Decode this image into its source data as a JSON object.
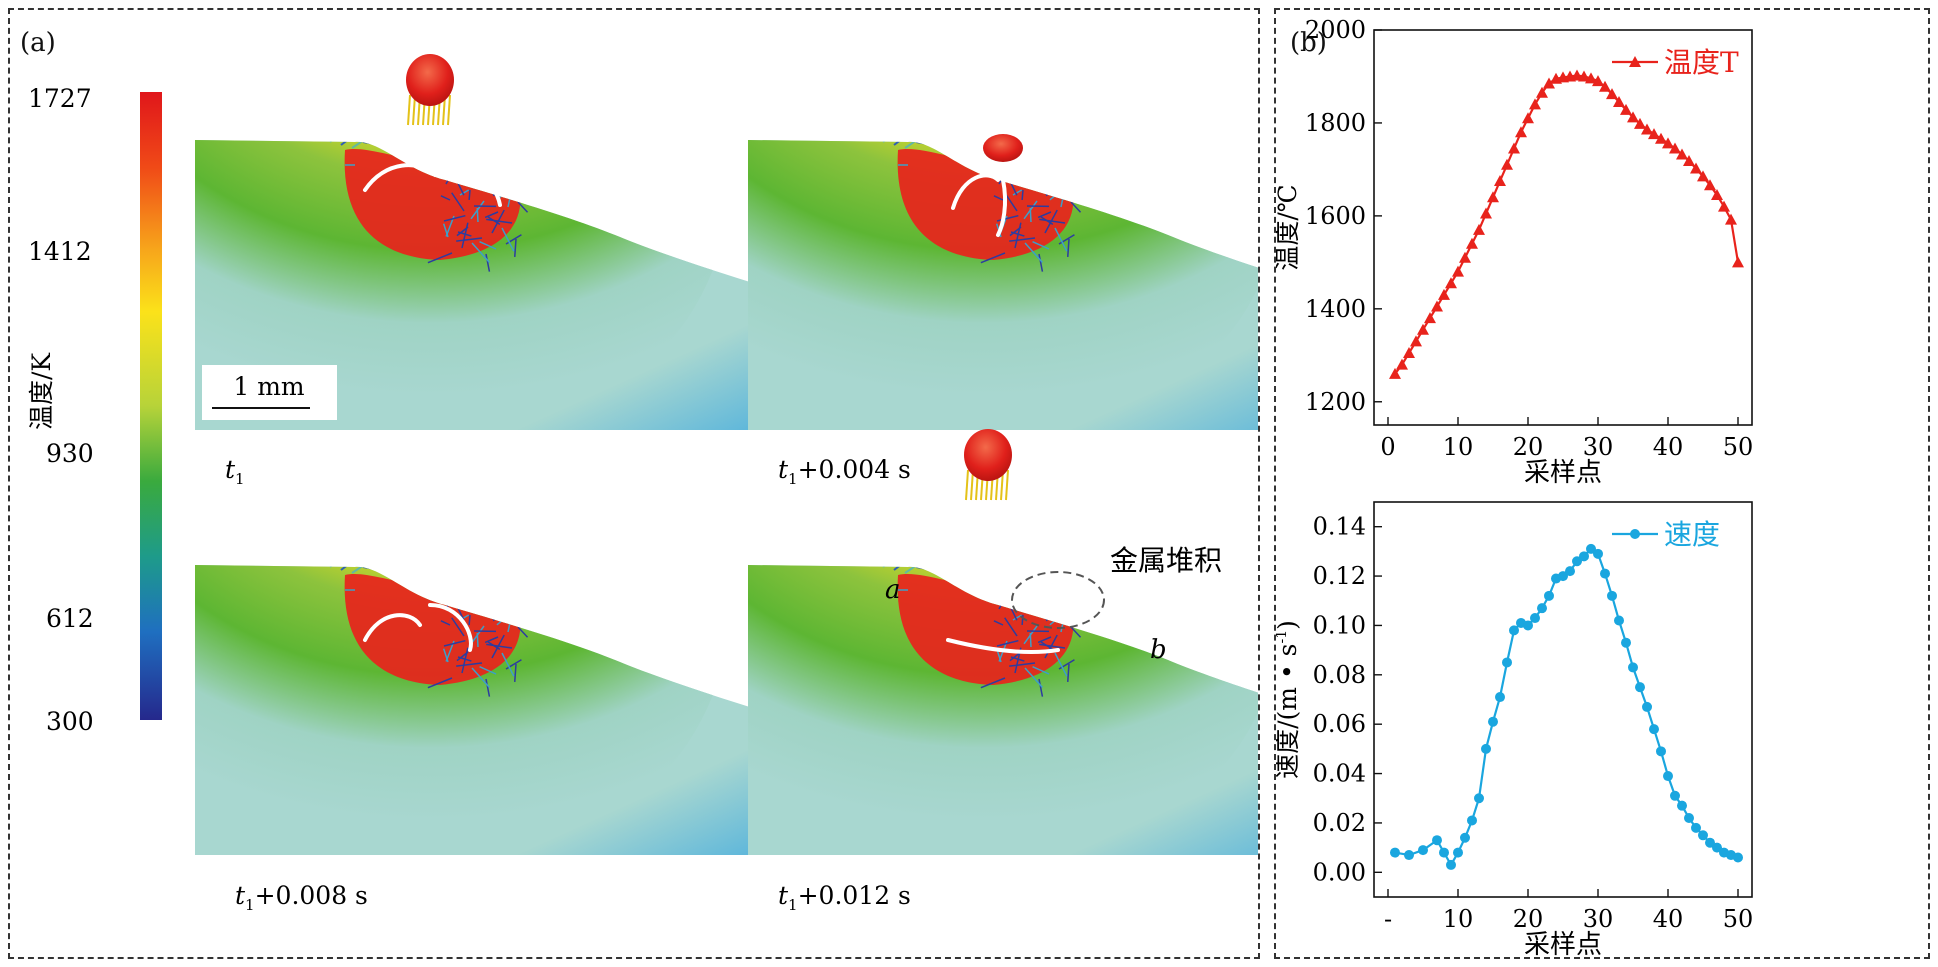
{
  "panel_a": {
    "label": "(a)",
    "colorbar": {
      "axis_label": "温度/K",
      "ticks": [
        "1727",
        "1412",
        "930",
        "612",
        "300"
      ]
    },
    "scale_bar": "1 mm",
    "snapshots": [
      {
        "base": "t",
        "sub": "1",
        "suffix": ""
      },
      {
        "base": "t",
        "sub": "1",
        "suffix": "+0.004 s"
      },
      {
        "base": "t",
        "sub": "1",
        "suffix": "+0.008 s"
      },
      {
        "base": "t",
        "sub": "1",
        "suffix": "+0.012 s"
      }
    ],
    "annotations": {
      "point_a": "a",
      "point_b": "b",
      "deposit": "金属堆积"
    },
    "colors": {
      "hot": "#e8231c",
      "warm": "#f5d800",
      "mid": "#5db633",
      "cool": "#a8d7d0",
      "cold": "#3aa7e0"
    }
  },
  "panel_b": {
    "label": "(b)"
  },
  "chart_data": [
    {
      "type": "line",
      "name": "温度T",
      "xlabel": "采样点",
      "ylabel": "温度/℃",
      "xlim": [
        -2,
        52
      ],
      "ylim": [
        1150,
        2000
      ],
      "xticks": [
        0,
        10,
        20,
        30,
        40,
        50
      ],
      "yticks": [
        1200,
        1400,
        1600,
        1800,
        2000
      ],
      "legend": "top-right",
      "color": "#e8231c",
      "marker": "triangle",
      "x": [
        1,
        2,
        3,
        4,
        5,
        6,
        7,
        8,
        9,
        10,
        11,
        12,
        13,
        14,
        15,
        16,
        17,
        18,
        19,
        20,
        21,
        22,
        23,
        24,
        25,
        26,
        27,
        28,
        29,
        30,
        31,
        32,
        33,
        34,
        35,
        36,
        37,
        38,
        39,
        40,
        41,
        42,
        43,
        44,
        45,
        46,
        47,
        48,
        49,
        50
      ],
      "y": [
        1260,
        1280,
        1305,
        1330,
        1355,
        1380,
        1405,
        1430,
        1455,
        1480,
        1510,
        1540,
        1570,
        1605,
        1640,
        1675,
        1710,
        1745,
        1780,
        1810,
        1840,
        1865,
        1885,
        1895,
        1898,
        1900,
        1902,
        1900,
        1896,
        1890,
        1878,
        1862,
        1845,
        1828,
        1812,
        1798,
        1786,
        1776,
        1766,
        1756,
        1745,
        1732,
        1718,
        1702,
        1685,
        1666,
        1645,
        1620,
        1592,
        1500
      ]
    },
    {
      "type": "line",
      "name": "速度",
      "xlabel": "采样点",
      "ylabel_main": "速度/(m • s",
      "ylabel_sup": "-1",
      "ylabel_end": ")",
      "xlim": [
        -2,
        52
      ],
      "ylim": [
        -0.01,
        0.15
      ],
      "xticks": [
        0,
        10,
        20,
        30,
        40,
        50
      ],
      "xtick_labels": [
        "-",
        "10",
        "20",
        "30",
        "40",
        "50"
      ],
      "yticks": [
        0.0,
        0.02,
        0.04,
        0.06,
        0.08,
        0.1,
        0.12,
        0.14
      ],
      "ytick_labels": [
        "0.00",
        "0.02",
        "0.04",
        "0.06",
        "0.08",
        "0.10",
        "0.12",
        "0.14"
      ],
      "legend": "top-right",
      "color": "#1aa6df",
      "marker": "circle",
      "x": [
        1,
        3,
        5,
        7,
        8,
        9,
        10,
        11,
        12,
        13,
        14,
        15,
        16,
        17,
        18,
        19,
        20,
        21,
        22,
        23,
        24,
        25,
        26,
        27,
        28,
        29,
        30,
        31,
        32,
        33,
        34,
        35,
        36,
        37,
        38,
        39,
        40,
        41,
        42,
        43,
        44,
        45,
        46,
        47,
        48,
        49,
        50
      ],
      "y": [
        0.008,
        0.007,
        0.009,
        0.013,
        0.008,
        0.003,
        0.008,
        0.014,
        0.021,
        0.03,
        0.05,
        0.061,
        0.071,
        0.085,
        0.098,
        0.101,
        0.1,
        0.103,
        0.107,
        0.112,
        0.119,
        0.12,
        0.122,
        0.126,
        0.128,
        0.131,
        0.129,
        0.121,
        0.112,
        0.102,
        0.093,
        0.083,
        0.075,
        0.067,
        0.058,
        0.049,
        0.039,
        0.031,
        0.027,
        0.022,
        0.018,
        0.015,
        0.012,
        0.01,
        0.008,
        0.007,
        0.006
      ]
    }
  ]
}
